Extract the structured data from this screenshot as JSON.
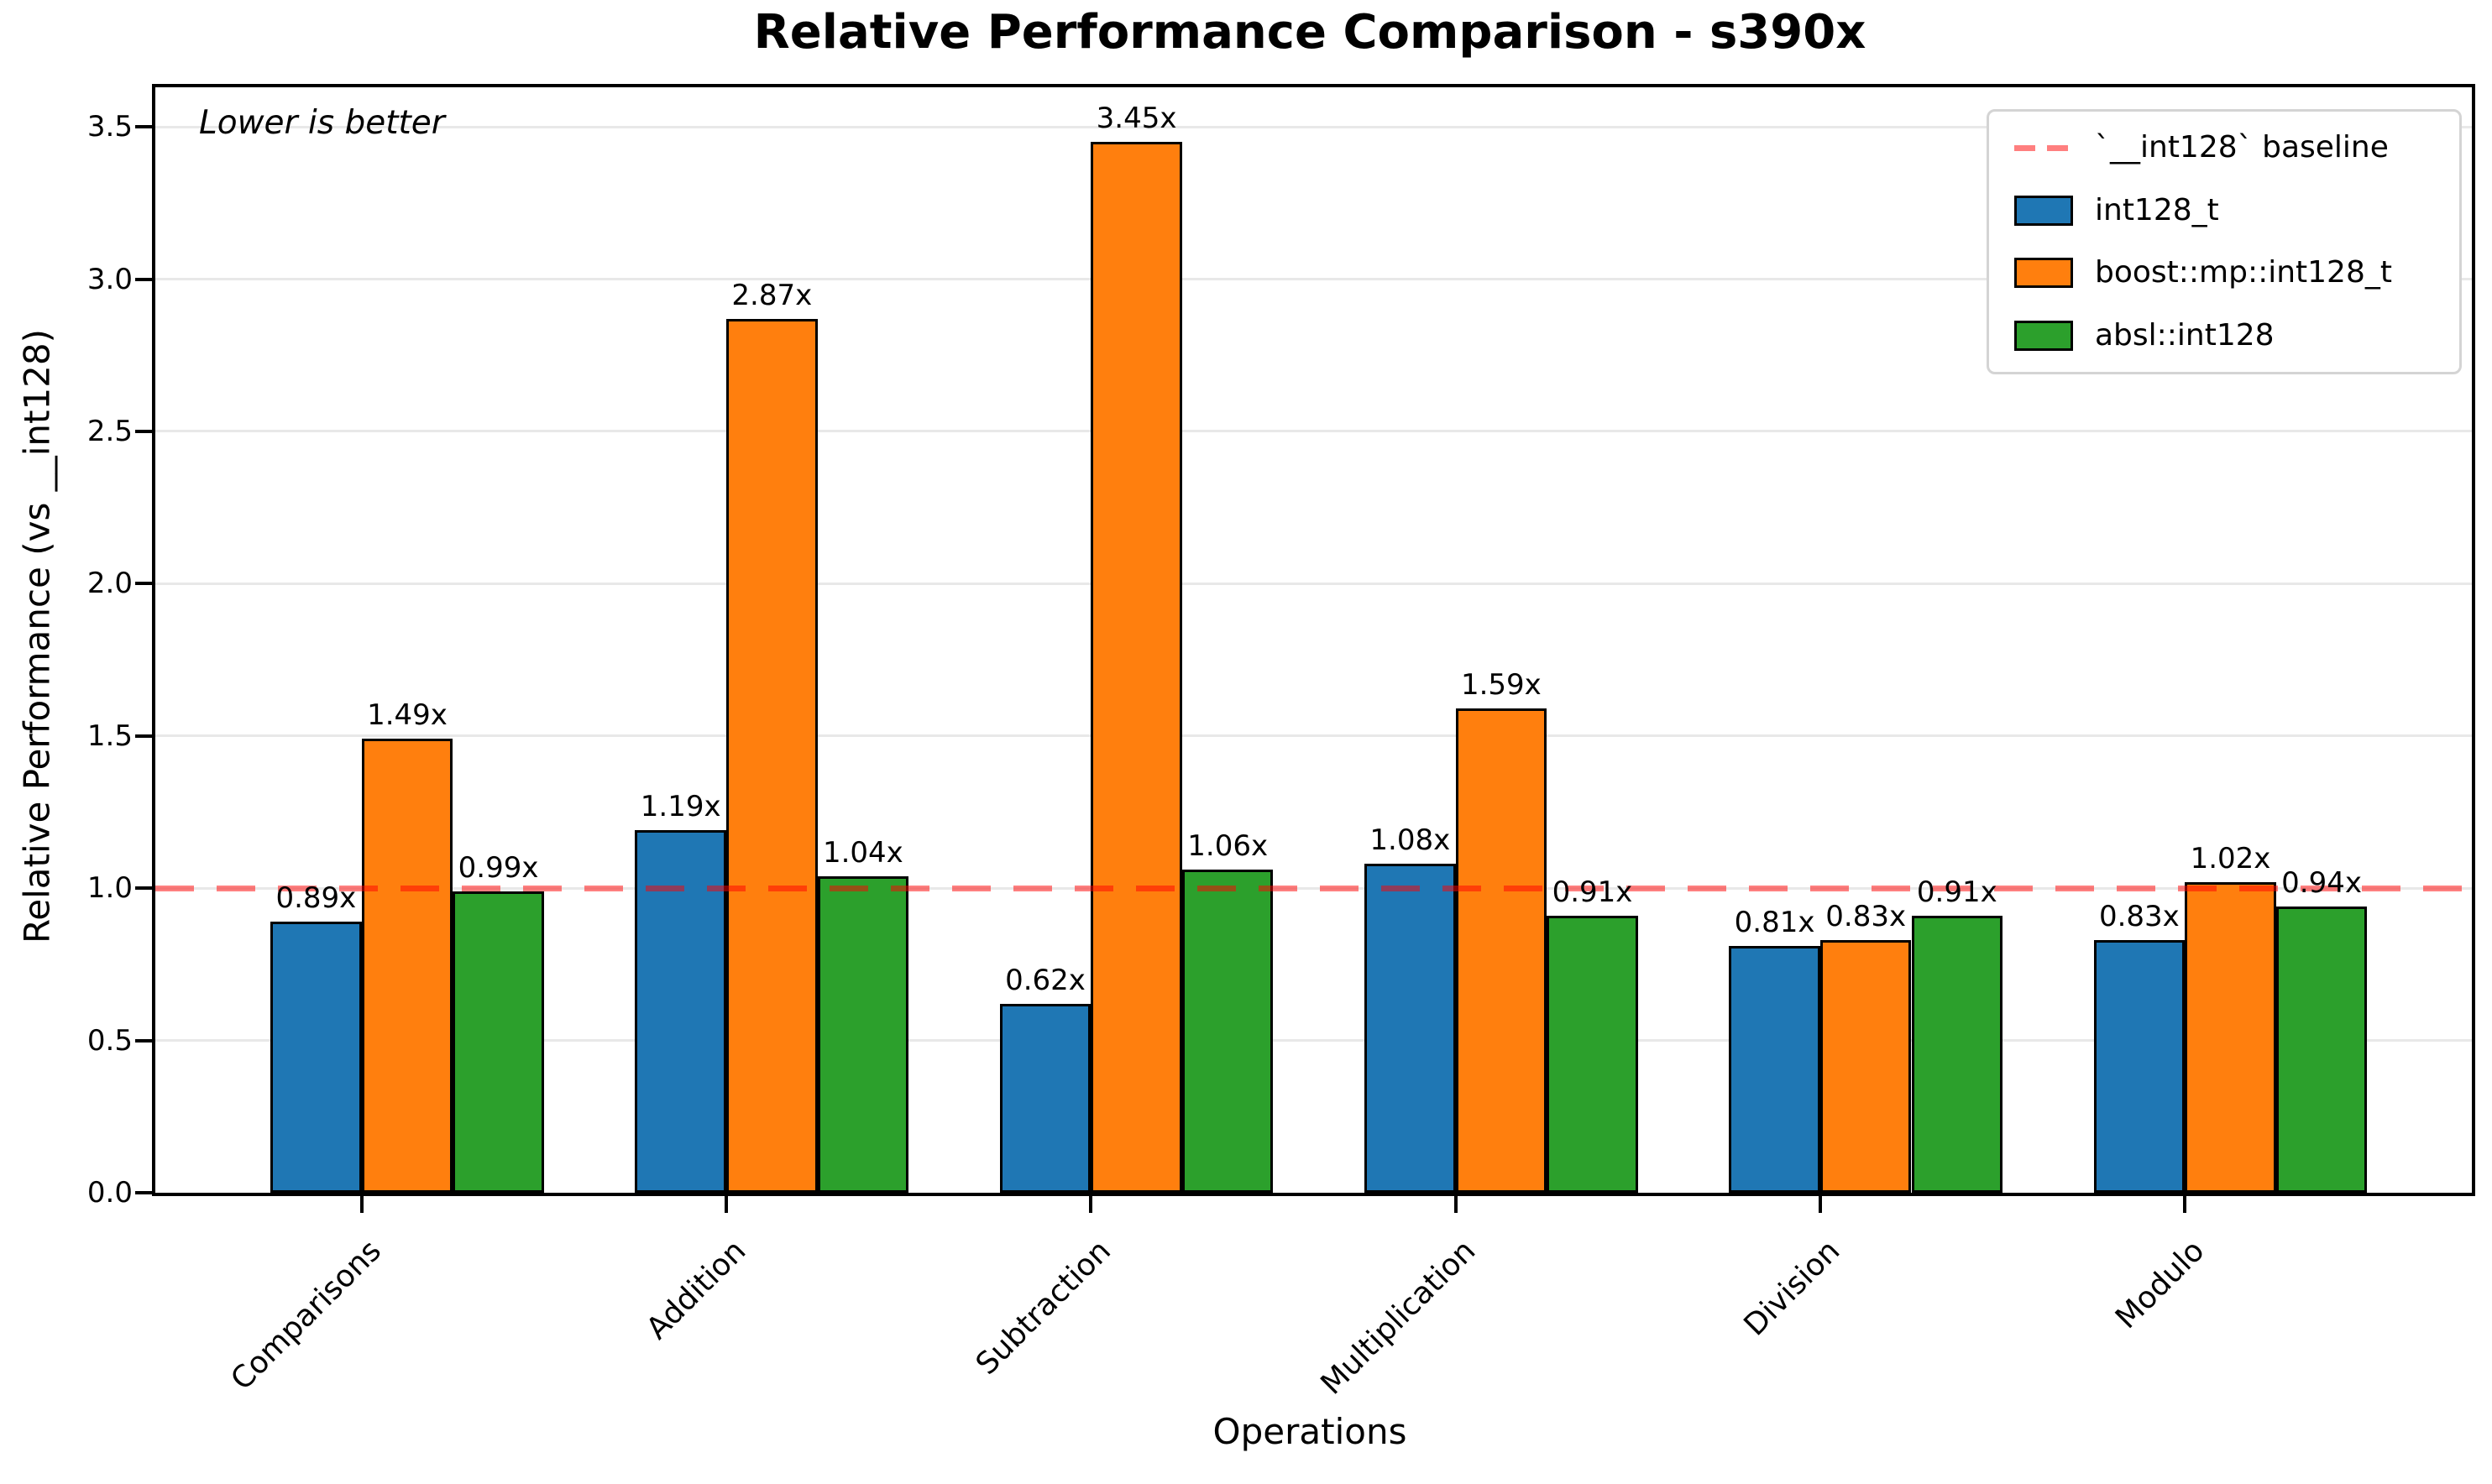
{
  "title": "Relative Performance Comparison - s390x",
  "annotation": "Lower is better",
  "xlabel": "Operations",
  "ylabel": "Relative Performance (vs __int128)",
  "chart_data": {
    "type": "bar",
    "categories": [
      "Comparisons",
      "Addition",
      "Subtraction",
      "Multiplication",
      "Division",
      "Modulo"
    ],
    "series": [
      {
        "name": "int128_t",
        "color": "#1f77b4",
        "values": [
          0.89,
          1.19,
          0.62,
          1.08,
          0.81,
          0.83
        ]
      },
      {
        "name": "boost::mp::int128_t",
        "color": "#ff7f0e",
        "values": [
          1.49,
          2.87,
          3.45,
          1.59,
          0.83,
          1.02
        ]
      },
      {
        "name": "absl::int128",
        "color": "#2ca02c",
        "values": [
          0.99,
          1.04,
          1.06,
          0.91,
          0.91,
          0.94
        ]
      }
    ],
    "bar_label_suffix": "x",
    "baseline": {
      "value": 1.0,
      "label": "`__int128` baseline",
      "color": "rgba(255,0,0,0.5)"
    },
    "yticks": [
      0.0,
      0.5,
      1.0,
      1.5,
      2.0,
      2.5,
      3.0,
      3.5
    ],
    "ylim": [
      0,
      3.63
    ],
    "grid": true,
    "gridline_color": "#e8e8e8",
    "legend_position": "upper right",
    "title": "Relative Performance Comparison - s390x",
    "xlabel": "Operations",
    "ylabel": "Relative Performance (vs __int128)"
  }
}
